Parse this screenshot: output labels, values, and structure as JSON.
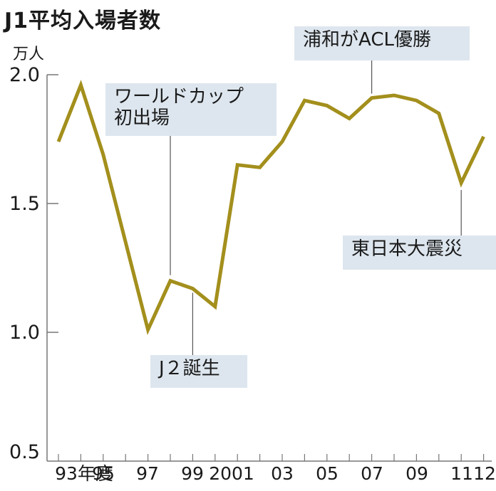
{
  "title": "J1平均入場者数",
  "unit": "万人",
  "colors": {
    "line": "#a38f1c",
    "annotation_bg": "#dde6ee",
    "axis": "#777777"
  },
  "y_ticks": [
    {
      "label": "2.0",
      "value": 2.0
    },
    {
      "label": "1.5",
      "value": 1.5
    },
    {
      "label": "1.0",
      "value": 1.0
    },
    {
      "label": "0.5",
      "value": 0.5
    }
  ],
  "x_labels": [
    {
      "label": "93年度",
      "year": 1993
    },
    {
      "label": "95",
      "year": 1995
    },
    {
      "label": "97",
      "year": 1997
    },
    {
      "label": "99",
      "year": 1999
    },
    {
      "label": "2001",
      "year": 2001
    },
    {
      "label": "03",
      "year": 2003
    },
    {
      "label": "05",
      "year": 2005
    },
    {
      "label": "07",
      "year": 2007
    },
    {
      "label": "09",
      "year": 2009
    },
    {
      "label": "11",
      "year": 2011
    },
    {
      "label": "12",
      "year": 2012
    }
  ],
  "annotations": [
    {
      "line1": "ワールドカップ",
      "line2": "初出場",
      "year": 1998
    },
    {
      "line1": "J２誕生",
      "line2": "",
      "year": 1999
    },
    {
      "line1": "浦和がACL優勝",
      "line2": "",
      "year": 2007
    },
    {
      "line1": "東日本大震災",
      "line2": "",
      "year": 2011
    }
  ],
  "chart_data": {
    "type": "line",
    "title": "J1平均入場者数",
    "xlabel": "年度",
    "ylabel": "万人",
    "ylim": [
      0.5,
      2.0
    ],
    "grid": false,
    "x": [
      1993,
      1994,
      1995,
      1996,
      1997,
      1998,
      1999,
      2000,
      2001,
      2002,
      2003,
      2004,
      2005,
      2006,
      2007,
      2008,
      2009,
      2010,
      2011,
      2012
    ],
    "series": [
      {
        "name": "J1平均入場者数",
        "values": [
          1.74,
          1.96,
          1.69,
          1.35,
          1.01,
          1.2,
          1.17,
          1.1,
          1.65,
          1.64,
          1.74,
          1.9,
          1.88,
          1.83,
          1.91,
          1.92,
          1.9,
          1.85,
          1.58,
          1.76
        ]
      }
    ],
    "annotations": [
      {
        "x": 1998,
        "text": "ワールドカップ初出場"
      },
      {
        "x": 1999,
        "text": "J２誕生"
      },
      {
        "x": 2007,
        "text": "浦和がACL優勝"
      },
      {
        "x": 2011,
        "text": "東日本大震災"
      }
    ]
  }
}
